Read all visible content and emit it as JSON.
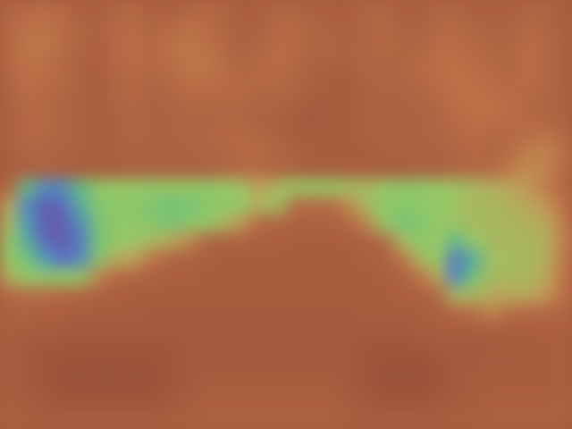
{
  "chart_data": {
    "type": "heatmap",
    "tick_labels": false,
    "zlim": [
      0,
      1
    ],
    "cells": [
      [
        0.82,
        0.8,
        0.78,
        0.8,
        0.85,
        0.85,
        0.82,
        0.8,
        0.85,
        0.85,
        0.82,
        0.8,
        0.82,
        0.85,
        0.85,
        0.82,
        0.82,
        0.85,
        0.85,
        0.85,
        0.82,
        0.82,
        0.85,
        0.85,
        0.82,
        0.82,
        0.85,
        0.85,
        0.85,
        0.82,
        0.82,
        0.85
      ],
      [
        0.8,
        0.76,
        0.75,
        0.78,
        0.82,
        0.84,
        0.8,
        0.78,
        0.82,
        0.8,
        0.76,
        0.78,
        0.82,
        0.85,
        0.84,
        0.8,
        0.8,
        0.82,
        0.84,
        0.85,
        0.82,
        0.8,
        0.84,
        0.84,
        0.8,
        0.8,
        0.82,
        0.84,
        0.84,
        0.8,
        0.82,
        0.85
      ],
      [
        0.8,
        0.74,
        0.74,
        0.78,
        0.82,
        0.85,
        0.8,
        0.78,
        0.8,
        0.76,
        0.74,
        0.76,
        0.8,
        0.84,
        0.82,
        0.78,
        0.8,
        0.82,
        0.82,
        0.84,
        0.82,
        0.8,
        0.82,
        0.82,
        0.78,
        0.78,
        0.8,
        0.82,
        0.82,
        0.78,
        0.8,
        0.84
      ],
      [
        0.8,
        0.75,
        0.76,
        0.8,
        0.84,
        0.85,
        0.8,
        0.78,
        0.8,
        0.78,
        0.74,
        0.74,
        0.78,
        0.82,
        0.8,
        0.78,
        0.8,
        0.84,
        0.84,
        0.84,
        0.82,
        0.82,
        0.82,
        0.8,
        0.76,
        0.76,
        0.78,
        0.8,
        0.82,
        0.78,
        0.8,
        0.84
      ],
      [
        0.82,
        0.76,
        0.78,
        0.8,
        0.84,
        0.86,
        0.82,
        0.8,
        0.82,
        0.8,
        0.76,
        0.76,
        0.78,
        0.8,
        0.8,
        0.8,
        0.82,
        0.84,
        0.86,
        0.86,
        0.84,
        0.82,
        0.82,
        0.8,
        0.78,
        0.76,
        0.76,
        0.78,
        0.8,
        0.78,
        0.8,
        0.84
      ],
      [
        0.84,
        0.78,
        0.8,
        0.82,
        0.84,
        0.86,
        0.82,
        0.8,
        0.84,
        0.82,
        0.8,
        0.8,
        0.8,
        0.8,
        0.82,
        0.82,
        0.84,
        0.86,
        0.86,
        0.86,
        0.84,
        0.84,
        0.84,
        0.82,
        0.8,
        0.76,
        0.76,
        0.76,
        0.78,
        0.8,
        0.82,
        0.84
      ],
      [
        0.84,
        0.8,
        0.8,
        0.82,
        0.84,
        0.86,
        0.84,
        0.82,
        0.84,
        0.84,
        0.82,
        0.82,
        0.82,
        0.82,
        0.84,
        0.84,
        0.86,
        0.88,
        0.86,
        0.86,
        0.84,
        0.84,
        0.84,
        0.84,
        0.82,
        0.78,
        0.76,
        0.76,
        0.78,
        0.8,
        0.82,
        0.84
      ],
      [
        0.84,
        0.8,
        0.8,
        0.82,
        0.84,
        0.86,
        0.84,
        0.82,
        0.84,
        0.84,
        0.82,
        0.82,
        0.8,
        0.8,
        0.82,
        0.84,
        0.86,
        0.86,
        0.86,
        0.86,
        0.84,
        0.84,
        0.84,
        0.84,
        0.82,
        0.8,
        0.78,
        0.8,
        0.8,
        0.78,
        0.76,
        0.8
      ],
      [
        0.85,
        0.82,
        0.82,
        0.84,
        0.84,
        0.86,
        0.84,
        0.84,
        0.84,
        0.84,
        0.84,
        0.82,
        0.82,
        0.8,
        0.78,
        0.82,
        0.84,
        0.86,
        0.86,
        0.86,
        0.86,
        0.84,
        0.84,
        0.84,
        0.84,
        0.82,
        0.8,
        0.82,
        0.78,
        0.72,
        0.7,
        0.76
      ],
      [
        0.86,
        0.84,
        0.84,
        0.84,
        0.86,
        0.86,
        0.86,
        0.84,
        0.84,
        0.84,
        0.84,
        0.84,
        0.82,
        0.8,
        0.8,
        0.82,
        0.84,
        0.86,
        0.86,
        0.86,
        0.86,
        0.86,
        0.86,
        0.84,
        0.84,
        0.82,
        0.8,
        0.8,
        0.74,
        0.68,
        0.7,
        0.78
      ],
      [
        0.8,
        0.35,
        0.2,
        0.2,
        0.35,
        0.48,
        0.5,
        0.5,
        0.48,
        0.5,
        0.5,
        0.48,
        0.5,
        0.52,
        0.62,
        0.55,
        0.5,
        0.5,
        0.5,
        0.52,
        0.55,
        0.5,
        0.48,
        0.48,
        0.5,
        0.52,
        0.55,
        0.58,
        0.6,
        0.65,
        0.72,
        0.8
      ],
      [
        0.6,
        0.2,
        0.05,
        0.1,
        0.3,
        0.45,
        0.48,
        0.46,
        0.45,
        0.38,
        0.42,
        0.46,
        0.48,
        0.5,
        0.58,
        0.52,
        0.78,
        0.8,
        0.78,
        0.7,
        0.55,
        0.48,
        0.46,
        0.48,
        0.5,
        0.52,
        0.55,
        0.55,
        0.58,
        0.6,
        0.65,
        0.75
      ],
      [
        0.55,
        0.25,
        0.05,
        0.05,
        0.2,
        0.42,
        0.48,
        0.48,
        0.46,
        0.42,
        0.46,
        0.5,
        0.55,
        0.65,
        0.8,
        0.82,
        0.84,
        0.84,
        0.84,
        0.8,
        0.7,
        0.5,
        0.42,
        0.44,
        0.5,
        0.52,
        0.55,
        0.55,
        0.56,
        0.58,
        0.6,
        0.72
      ],
      [
        0.5,
        0.3,
        0.1,
        0.05,
        0.15,
        0.4,
        0.5,
        0.5,
        0.55,
        0.6,
        0.68,
        0.82,
        0.84,
        0.84,
        0.85,
        0.85,
        0.86,
        0.86,
        0.86,
        0.85,
        0.84,
        0.8,
        0.55,
        0.48,
        0.5,
        0.35,
        0.5,
        0.55,
        0.55,
        0.56,
        0.58,
        0.7
      ],
      [
        0.5,
        0.4,
        0.25,
        0.12,
        0.18,
        0.45,
        0.6,
        0.62,
        0.75,
        0.82,
        0.84,
        0.85,
        0.86,
        0.86,
        0.86,
        0.86,
        0.86,
        0.86,
        0.86,
        0.86,
        0.85,
        0.84,
        0.75,
        0.55,
        0.5,
        0.15,
        0.3,
        0.52,
        0.55,
        0.56,
        0.58,
        0.72
      ],
      [
        0.58,
        0.5,
        0.48,
        0.48,
        0.5,
        0.7,
        0.8,
        0.82,
        0.84,
        0.85,
        0.85,
        0.86,
        0.86,
        0.86,
        0.86,
        0.86,
        0.86,
        0.86,
        0.86,
        0.86,
        0.86,
        0.85,
        0.84,
        0.75,
        0.6,
        0.18,
        0.4,
        0.55,
        0.55,
        0.56,
        0.6,
        0.74
      ],
      [
        0.8,
        0.78,
        0.78,
        0.8,
        0.82,
        0.84,
        0.85,
        0.86,
        0.86,
        0.86,
        0.86,
        0.86,
        0.86,
        0.86,
        0.86,
        0.86,
        0.86,
        0.86,
        0.86,
        0.86,
        0.86,
        0.86,
        0.85,
        0.84,
        0.8,
        0.55,
        0.55,
        0.6,
        0.6,
        0.6,
        0.65,
        0.76
      ],
      [
        0.84,
        0.84,
        0.85,
        0.85,
        0.86,
        0.86,
        0.86,
        0.86,
        0.87,
        0.87,
        0.87,
        0.87,
        0.87,
        0.87,
        0.87,
        0.87,
        0.87,
        0.87,
        0.87,
        0.87,
        0.86,
        0.86,
        0.86,
        0.86,
        0.85,
        0.8,
        0.78,
        0.7,
        0.78,
        0.8,
        0.8,
        0.82
      ],
      [
        0.85,
        0.86,
        0.86,
        0.87,
        0.88,
        0.88,
        0.88,
        0.88,
        0.88,
        0.88,
        0.88,
        0.88,
        0.88,
        0.88,
        0.88,
        0.88,
        0.88,
        0.88,
        0.88,
        0.88,
        0.88,
        0.88,
        0.88,
        0.86,
        0.86,
        0.86,
        0.86,
        0.86,
        0.86,
        0.86,
        0.85,
        0.85
      ],
      [
        0.86,
        0.88,
        0.9,
        0.9,
        0.9,
        0.9,
        0.9,
        0.9,
        0.9,
        0.9,
        0.88,
        0.88,
        0.88,
        0.88,
        0.88,
        0.88,
        0.88,
        0.88,
        0.88,
        0.88,
        0.9,
        0.9,
        0.9,
        0.9,
        0.88,
        0.88,
        0.88,
        0.87,
        0.87,
        0.86,
        0.86,
        0.85
      ],
      [
        0.86,
        0.88,
        0.9,
        0.92,
        0.92,
        0.92,
        0.92,
        0.92,
        0.92,
        0.9,
        0.88,
        0.87,
        0.87,
        0.87,
        0.87,
        0.87,
        0.87,
        0.87,
        0.87,
        0.88,
        0.9,
        0.92,
        0.92,
        0.92,
        0.9,
        0.88,
        0.87,
        0.86,
        0.86,
        0.86,
        0.86,
        0.85
      ],
      [
        0.86,
        0.88,
        0.9,
        0.92,
        0.92,
        0.93,
        0.93,
        0.92,
        0.92,
        0.9,
        0.88,
        0.86,
        0.86,
        0.86,
        0.86,
        0.86,
        0.86,
        0.86,
        0.86,
        0.88,
        0.9,
        0.92,
        0.92,
        0.92,
        0.9,
        0.88,
        0.86,
        0.86,
        0.86,
        0.86,
        0.86,
        0.85
      ],
      [
        0.85,
        0.87,
        0.88,
        0.9,
        0.9,
        0.9,
        0.9,
        0.9,
        0.9,
        0.88,
        0.86,
        0.85,
        0.85,
        0.85,
        0.85,
        0.85,
        0.85,
        0.85,
        0.85,
        0.86,
        0.88,
        0.9,
        0.9,
        0.9,
        0.88,
        0.87,
        0.86,
        0.85,
        0.85,
        0.85,
        0.85,
        0.84
      ],
      [
        0.84,
        0.85,
        0.86,
        0.86,
        0.86,
        0.86,
        0.86,
        0.86,
        0.86,
        0.85,
        0.85,
        0.84,
        0.84,
        0.84,
        0.84,
        0.84,
        0.84,
        0.84,
        0.84,
        0.85,
        0.86,
        0.86,
        0.86,
        0.86,
        0.86,
        0.85,
        0.85,
        0.84,
        0.84,
        0.84,
        0.84,
        0.84
      ]
    ]
  }
}
